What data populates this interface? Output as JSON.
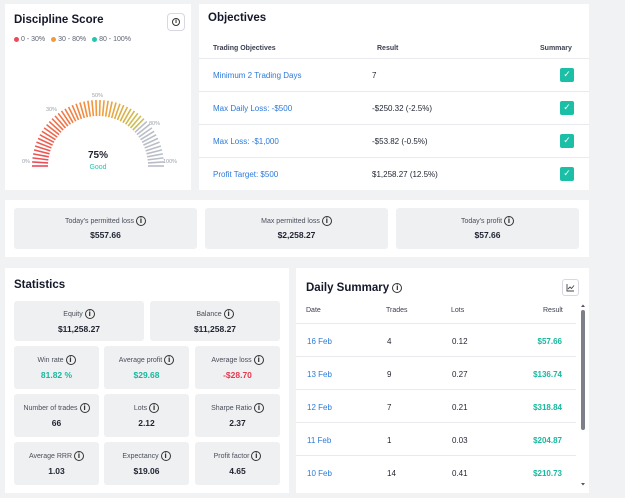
{
  "discipline": {
    "title": "Discipline Score",
    "legend": [
      {
        "label": "0 - 30%",
        "color": "#ea4b5a"
      },
      {
        "label": "30 - 80%",
        "color": "#f39a3a"
      },
      {
        "label": "80 - 100%",
        "color": "#21c6b0"
      }
    ],
    "gauge": {
      "value": 75,
      "value_text": "75%",
      "label": "Good",
      "ticks": [
        "0%",
        "30%",
        "50%",
        "80%",
        "100%"
      ]
    }
  },
  "objectives": {
    "title": "Objectives",
    "headers": {
      "name": "Trading Objectives",
      "result": "Result",
      "summary": "Summary"
    },
    "rows": [
      {
        "name": "Minimum 2 Trading Days",
        "result": "7"
      },
      {
        "name": "Max Daily Loss: -$500",
        "result": "-$250.32 (-2.5%)"
      },
      {
        "name": "Max Loss: -$1,000",
        "result": "-$53.82 (-0.5%)"
      },
      {
        "name": "Profit Target: $500",
        "result": "$1,258.27 (12.5%)"
      }
    ]
  },
  "limits": [
    {
      "label": "Today's permitted loss",
      "value": "$557.66"
    },
    {
      "label": "Max permitted loss",
      "value": "$2,258.27"
    },
    {
      "label": "Today's profit",
      "value": "$57.66"
    }
  ],
  "statistics": {
    "title": "Statistics",
    "equity": {
      "label": "Equity",
      "value": "$11,258.27"
    },
    "balance": {
      "label": "Balance",
      "value": "$11,258.27"
    },
    "win_rate": {
      "label": "Win rate",
      "value": "81.82 %"
    },
    "avg_profit": {
      "label": "Average profit",
      "value": "$29.68"
    },
    "avg_loss": {
      "label": "Average loss",
      "value": "-$28.70"
    },
    "num_trades": {
      "label": "Number of trades",
      "value": "66"
    },
    "lots": {
      "label": "Lots",
      "value": "2.12"
    },
    "sharpe": {
      "label": "Sharpe Ratio",
      "value": "2.37"
    },
    "avg_rrr": {
      "label": "Average RRR",
      "value": "1.03"
    },
    "expectancy": {
      "label": "Expectancy",
      "value": "$19.06"
    },
    "profit_factor": {
      "label": "Profit factor",
      "value": "4.65"
    }
  },
  "daily": {
    "title": "Daily Summary",
    "headers": {
      "date": "Date",
      "trades": "Trades",
      "lots": "Lots",
      "result": "Result"
    },
    "rows": [
      {
        "date": "16 Feb",
        "trades": "4",
        "lots": "0.12",
        "result": "$57.66"
      },
      {
        "date": "13 Feb",
        "trades": "9",
        "lots": "0.27",
        "result": "$136.74"
      },
      {
        "date": "12 Feb",
        "trades": "7",
        "lots": "0.21",
        "result": "$318.84"
      },
      {
        "date": "11 Feb",
        "trades": "1",
        "lots": "0.03",
        "result": "$204.87"
      },
      {
        "date": "10 Feb",
        "trades": "14",
        "lots": "0.41",
        "result": "$210.73"
      }
    ]
  }
}
